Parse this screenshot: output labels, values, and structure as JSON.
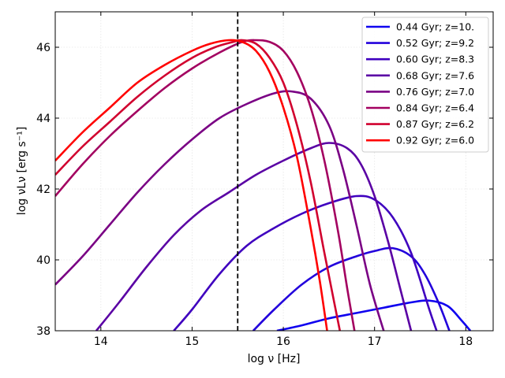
{
  "chart_data": {
    "type": "line",
    "xlabel": "log ν [Hz]",
    "ylabel": "log νLν [erg s⁻¹]",
    "xlim": [
      13.5,
      18.3
    ],
    "ylim": [
      38,
      47
    ],
    "xticks": [
      14,
      15,
      16,
      17,
      18
    ],
    "yticks": [
      38,
      40,
      42,
      44,
      46
    ],
    "vline": 15.5,
    "grid": true,
    "legend_position": "top-right",
    "series": [
      {
        "name": "0.44 Gyr; z=10.",
        "color": "#0f00ef",
        "x": [
          15.93,
          16.2,
          16.5,
          16.8,
          17.1,
          17.4,
          17.6,
          17.8,
          17.95,
          18.05
        ],
        "y": [
          38.0,
          38.15,
          38.35,
          38.5,
          38.65,
          38.8,
          38.85,
          38.7,
          38.3,
          38.0
        ]
      },
      {
        "name": "0.52 Gyr; z=9.2",
        "color": "#2200dc",
        "x": [
          15.67,
          15.9,
          16.2,
          16.5,
          16.8,
          17.0,
          17.2,
          17.4,
          17.55,
          17.7,
          17.82
        ],
        "y": [
          38.0,
          38.6,
          39.3,
          39.8,
          40.1,
          40.25,
          40.33,
          40.1,
          39.6,
          38.8,
          38.0
        ]
      },
      {
        "name": "0.60 Gyr; z=8.3",
        "color": "#3f00bf",
        "x": [
          14.8,
          15.0,
          15.3,
          15.6,
          15.9,
          16.2,
          16.5,
          16.8,
          17.0,
          17.2,
          17.4,
          17.6,
          17.68
        ],
        "y": [
          38.0,
          38.6,
          39.6,
          40.4,
          40.9,
          41.3,
          41.6,
          41.8,
          41.7,
          41.2,
          40.2,
          38.6,
          38.0
        ]
      },
      {
        "name": "0.68 Gyr; z=7.6",
        "color": "#5a00a4",
        "x": [
          13.95,
          14.2,
          14.5,
          14.8,
          15.1,
          15.4,
          15.7,
          16.0,
          16.3,
          16.5,
          16.7,
          16.85,
          17.0,
          17.15,
          17.28,
          17.4
        ],
        "y": [
          38.0,
          38.8,
          39.8,
          40.7,
          41.4,
          41.9,
          42.4,
          42.8,
          43.15,
          43.3,
          43.15,
          42.7,
          41.8,
          40.5,
          39.2,
          38.0
        ]
      },
      {
        "name": "0.76 Gyr; z=7.0",
        "color": "#7a0084",
        "x": [
          13.5,
          13.8,
          14.1,
          14.4,
          14.7,
          15.0,
          15.3,
          15.6,
          15.9,
          16.1,
          16.3,
          16.5,
          16.65,
          16.8,
          16.95,
          17.1
        ],
        "y": [
          39.3,
          40.1,
          41.0,
          41.9,
          42.7,
          43.4,
          44.0,
          44.4,
          44.7,
          44.75,
          44.55,
          43.8,
          42.6,
          41.0,
          39.3,
          38.0
        ]
      },
      {
        "name": "0.84 Gyr; z=6.4",
        "color": "#a30060",
        "x": [
          13.5,
          13.8,
          14.1,
          14.4,
          14.7,
          15.0,
          15.3,
          15.55,
          15.7,
          15.85,
          16.0,
          16.15,
          16.3,
          16.45,
          16.6,
          16.7,
          16.78
        ],
        "y": [
          41.8,
          42.7,
          43.5,
          44.2,
          44.85,
          45.4,
          45.85,
          46.15,
          46.2,
          46.15,
          45.9,
          45.3,
          44.3,
          42.8,
          40.8,
          39.2,
          38.0
        ]
      },
      {
        "name": "0.87 Gyr; z=6.2",
        "color": "#d1002e",
        "x": [
          13.5,
          13.8,
          14.1,
          14.4,
          14.7,
          15.0,
          15.25,
          15.45,
          15.55,
          15.7,
          15.85,
          16.0,
          16.15,
          16.3,
          16.45,
          16.55,
          16.62
        ],
        "y": [
          42.4,
          43.2,
          43.9,
          44.6,
          45.2,
          45.7,
          46.0,
          46.15,
          46.2,
          46.1,
          45.7,
          45.0,
          43.8,
          42.2,
          40.2,
          38.9,
          38.0
        ]
      },
      {
        "name": "0.92 Gyr; z=6.0",
        "color": "#ff0000",
        "x": [
          13.5,
          13.8,
          14.1,
          14.4,
          14.7,
          15.0,
          15.2,
          15.4,
          15.55,
          15.7,
          15.85,
          16.0,
          16.15,
          16.3,
          16.4,
          16.48
        ],
        "y": [
          42.8,
          43.6,
          44.3,
          45.0,
          45.5,
          45.9,
          46.1,
          46.2,
          46.15,
          45.9,
          45.3,
          44.3,
          42.9,
          40.9,
          39.4,
          38.0
        ]
      }
    ]
  }
}
